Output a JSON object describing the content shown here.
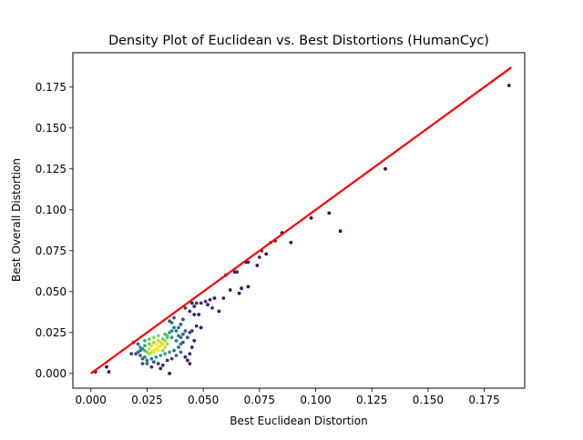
{
  "chart_data": {
    "type": "scatter",
    "title": "Density Plot of Euclidean vs. Best Distortions (HumanCyc)",
    "xlabel": "Best Euclidean Distortion",
    "ylabel": "Best Overall Distortion",
    "xlim": [
      -0.008,
      0.193
    ],
    "ylim": [
      -0.009,
      0.196
    ],
    "xticks": [
      0.0,
      0.025,
      0.05,
      0.075,
      0.1,
      0.125,
      0.15,
      0.175
    ],
    "xtick_labels": [
      "0.000",
      "0.025",
      "0.050",
      "0.075",
      "0.100",
      "0.125",
      "0.150",
      "0.175"
    ],
    "yticks": [
      0.0,
      0.025,
      0.05,
      0.075,
      0.1,
      0.125,
      0.15,
      0.175
    ],
    "ytick_labels": [
      "0.000",
      "0.025",
      "0.050",
      "0.075",
      "0.100",
      "0.125",
      "0.150",
      "0.175"
    ],
    "grid": false,
    "colormap": [
      "#440154",
      "#3b528b",
      "#21918c",
      "#5ec962",
      "#fde725"
    ],
    "reference_line": {
      "x": [
        0.0,
        0.187
      ],
      "y": [
        0.0,
        0.187
      ],
      "color": "#ff0000"
    },
    "points": [
      [
        0.186,
        0.176,
        0.0
      ],
      [
        0.131,
        0.125,
        0.0
      ],
      [
        0.111,
        0.087,
        0.0
      ],
      [
        0.106,
        0.098,
        0.0
      ],
      [
        0.098,
        0.095,
        0.0
      ],
      [
        0.089,
        0.08,
        0.0
      ],
      [
        0.085,
        0.086,
        0.05
      ],
      [
        0.082,
        0.081,
        0.15
      ],
      [
        0.08,
        0.08,
        0.2
      ],
      [
        0.078,
        0.073,
        0.05
      ],
      [
        0.076,
        0.075,
        0.1
      ],
      [
        0.075,
        0.071,
        0.15
      ],
      [
        0.074,
        0.066,
        0.0
      ],
      [
        0.07,
        0.068,
        0.1
      ],
      [
        0.069,
        0.068,
        0.05
      ],
      [
        0.07,
        0.053,
        0.0
      ],
      [
        0.067,
        0.052,
        0.0
      ],
      [
        0.066,
        0.049,
        0.0
      ],
      [
        0.064,
        0.062,
        0.05
      ],
      [
        0.065,
        0.062,
        0.1
      ],
      [
        0.062,
        0.051,
        0.05
      ],
      [
        0.06,
        0.06,
        0.1
      ],
      [
        0.059,
        0.046,
        0.1
      ],
      [
        0.057,
        0.038,
        0.05
      ],
      [
        0.055,
        0.046,
        0.05
      ],
      [
        0.053,
        0.045,
        0.1
      ],
      [
        0.051,
        0.044,
        0.1
      ],
      [
        0.049,
        0.043,
        0.1
      ],
      [
        0.047,
        0.043,
        0.15
      ],
      [
        0.046,
        0.041,
        0.1
      ],
      [
        0.045,
        0.043,
        0.1
      ],
      [
        0.044,
        0.038,
        0.15
      ],
      [
        0.046,
        0.036,
        0.05
      ],
      [
        0.048,
        0.036,
        0.05
      ],
      [
        0.049,
        0.028,
        0.0
      ],
      [
        0.052,
        0.042,
        0.1
      ],
      [
        0.054,
        0.04,
        0.15
      ],
      [
        0.042,
        0.04,
        0.2
      ],
      [
        0.04,
        0.03,
        0.3
      ],
      [
        0.042,
        0.026,
        0.3
      ],
      [
        0.043,
        0.022,
        0.25
      ],
      [
        0.044,
        0.025,
        0.2
      ],
      [
        0.045,
        0.026,
        0.15
      ],
      [
        0.047,
        0.029,
        0.1
      ],
      [
        0.042,
        0.01,
        0.1
      ],
      [
        0.043,
        0.008,
        0.05
      ],
      [
        0.041,
        0.019,
        0.25
      ],
      [
        0.04,
        0.018,
        0.4
      ],
      [
        0.039,
        0.023,
        0.4
      ],
      [
        0.038,
        0.026,
        0.45
      ],
      [
        0.037,
        0.028,
        0.4
      ],
      [
        0.036,
        0.031,
        0.35
      ],
      [
        0.035,
        0.025,
        0.55
      ],
      [
        0.034,
        0.022,
        0.75
      ],
      [
        0.033,
        0.02,
        0.85
      ],
      [
        0.032,
        0.018,
        0.95
      ],
      [
        0.031,
        0.017,
        1.0
      ],
      [
        0.03,
        0.016,
        1.0
      ],
      [
        0.029,
        0.015,
        1.0
      ],
      [
        0.028,
        0.014,
        0.95
      ],
      [
        0.027,
        0.013,
        0.9
      ],
      [
        0.026,
        0.012,
        0.85
      ],
      [
        0.025,
        0.013,
        0.8
      ],
      [
        0.024,
        0.014,
        0.65
      ],
      [
        0.023,
        0.015,
        0.5
      ],
      [
        0.022,
        0.014,
        0.45
      ],
      [
        0.021,
        0.013,
        0.35
      ],
      [
        0.02,
        0.012,
        0.3
      ],
      [
        0.022,
        0.016,
        0.55
      ],
      [
        0.024,
        0.017,
        0.6
      ],
      [
        0.026,
        0.018,
        0.75
      ],
      [
        0.028,
        0.019,
        0.85
      ],
      [
        0.03,
        0.02,
        0.9
      ],
      [
        0.032,
        0.021,
        0.8
      ],
      [
        0.034,
        0.023,
        0.7
      ],
      [
        0.036,
        0.022,
        0.55
      ],
      [
        0.038,
        0.02,
        0.45
      ],
      [
        0.039,
        0.016,
        0.35
      ],
      [
        0.037,
        0.014,
        0.45
      ],
      [
        0.035,
        0.013,
        0.55
      ],
      [
        0.033,
        0.012,
        0.6
      ],
      [
        0.031,
        0.011,
        0.6
      ],
      [
        0.029,
        0.01,
        0.55
      ],
      [
        0.027,
        0.009,
        0.45
      ],
      [
        0.025,
        0.008,
        0.35
      ],
      [
        0.023,
        0.006,
        0.25
      ],
      [
        0.025,
        0.006,
        0.3
      ],
      [
        0.028,
        0.007,
        0.3
      ],
      [
        0.03,
        0.006,
        0.2
      ],
      [
        0.032,
        0.005,
        0.1
      ],
      [
        0.035,
        0.0,
        0.0
      ],
      [
        0.034,
        0.008,
        0.15
      ],
      [
        0.036,
        0.009,
        0.2
      ],
      [
        0.038,
        0.011,
        0.3
      ],
      [
        0.04,
        0.013,
        0.35
      ],
      [
        0.04,
        0.022,
        0.35
      ],
      [
        0.041,
        0.024,
        0.3
      ],
      [
        0.039,
        0.028,
        0.35
      ],
      [
        0.036,
        0.026,
        0.5
      ],
      [
        0.033,
        0.024,
        0.7
      ],
      [
        0.03,
        0.023,
        0.8
      ],
      [
        0.028,
        0.022,
        0.85
      ],
      [
        0.026,
        0.021,
        0.75
      ],
      [
        0.024,
        0.02,
        0.65
      ],
      [
        0.027,
        0.017,
        0.95
      ],
      [
        0.029,
        0.018,
        1.0
      ],
      [
        0.031,
        0.019,
        0.95
      ],
      [
        0.03,
        0.014,
        1.0
      ],
      [
        0.028,
        0.013,
        1.0
      ],
      [
        0.026,
        0.015,
        0.95
      ],
      [
        0.033,
        0.016,
        0.9
      ],
      [
        0.034,
        0.018,
        0.85
      ],
      [
        0.032,
        0.014,
        0.85
      ],
      [
        0.018,
        0.012,
        0.2
      ],
      [
        0.019,
        0.019,
        0.15
      ],
      [
        0.021,
        0.018,
        0.3
      ],
      [
        0.022,
        0.011,
        0.35
      ],
      [
        0.024,
        0.01,
        0.45
      ],
      [
        0.023,
        0.009,
        0.3
      ],
      [
        0.045,
        0.016,
        0.1
      ],
      [
        0.044,
        0.012,
        0.15
      ],
      [
        0.046,
        0.02,
        0.1
      ],
      [
        0.044,
        0.006,
        0.05
      ],
      [
        0.027,
        0.004,
        0.15
      ],
      [
        0.031,
        0.003,
        0.1
      ],
      [
        0.002,
        0.001,
        0.0
      ],
      [
        0.007,
        0.004,
        0.0
      ],
      [
        0.008,
        0.001,
        0.0
      ],
      [
        0.037,
        0.034,
        0.25
      ],
      [
        0.035,
        0.032,
        0.3
      ],
      [
        0.041,
        0.033,
        0.2
      ]
    ]
  }
}
